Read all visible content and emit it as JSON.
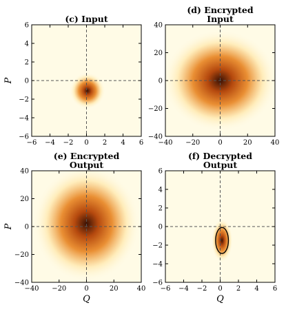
{
  "chart_data": [
    {
      "type": "heatmap",
      "panel": "c",
      "title_lines": [
        "(c) Input"
      ],
      "xlabel": "",
      "ylabel": "P",
      "xlim": [
        -6,
        6
      ],
      "ylim": [
        -6,
        6
      ],
      "xticks": [
        -6,
        -4,
        -2,
        0,
        2,
        4,
        6
      ],
      "yticks": [
        -6,
        -4,
        -2,
        0,
        2,
        4,
        6
      ],
      "blob": {
        "center": [
          0.1,
          -1.1
        ],
        "sigma": [
          0.75,
          0.75
        ]
      },
      "ellipse": null,
      "dashed_crosshair": [
        0,
        0
      ]
    },
    {
      "type": "heatmap",
      "panel": "d",
      "title_lines": [
        "(d) Encrypted",
        "Input"
      ],
      "xlabel": "",
      "ylabel": "",
      "xlim": [
        -40,
        40
      ],
      "ylim": [
        -40,
        40
      ],
      "xticks": [
        -40,
        -20,
        0,
        20,
        40
      ],
      "yticks": [
        -40,
        -20,
        0,
        20,
        40
      ],
      "blob": {
        "center": [
          0,
          0
        ],
        "sigma": [
          16,
          14
        ]
      },
      "ellipse": null,
      "dashed_crosshair": [
        0,
        0
      ]
    },
    {
      "type": "heatmap",
      "panel": "e",
      "title_lines": [
        "(e) Encrypted",
        "Output"
      ],
      "xlabel": "Q",
      "ylabel": "P",
      "xlim": [
        -40,
        40
      ],
      "ylim": [
        -40,
        40
      ],
      "xticks": [
        -40,
        -20,
        0,
        20,
        40
      ],
      "yticks": [
        -40,
        -20,
        0,
        20,
        40
      ],
      "blob": {
        "center": [
          0,
          2
        ],
        "sigma": [
          15,
          16
        ]
      },
      "ellipse": null,
      "dashed_crosshair": [
        0,
        0
      ]
    },
    {
      "type": "heatmap",
      "panel": "f",
      "title_lines": [
        "(f) Decrypted",
        "Output"
      ],
      "xlabel": "Q",
      "ylabel": "",
      "xlim": [
        -6,
        6
      ],
      "ylim": [
        -6,
        6
      ],
      "xticks": [
        -6,
        -4,
        -2,
        0,
        2,
        4,
        6
      ],
      "yticks": [
        -6,
        -4,
        -2,
        0,
        2,
        4,
        6
      ],
      "blob": {
        "center": [
          0.2,
          -1.5
        ],
        "sigma": [
          0.45,
          0.9
        ]
      },
      "ellipse": {
        "center": [
          0.2,
          -1.5
        ],
        "radii": [
          0.7,
          1.4
        ]
      },
      "dashed_crosshair": [
        0,
        0
      ]
    }
  ],
  "colors": {
    "background": "#fffbe6",
    "light": "#ffe9b0",
    "mid": "#e8892a",
    "dark": "#b5490e",
    "core": "#3a1205"
  }
}
